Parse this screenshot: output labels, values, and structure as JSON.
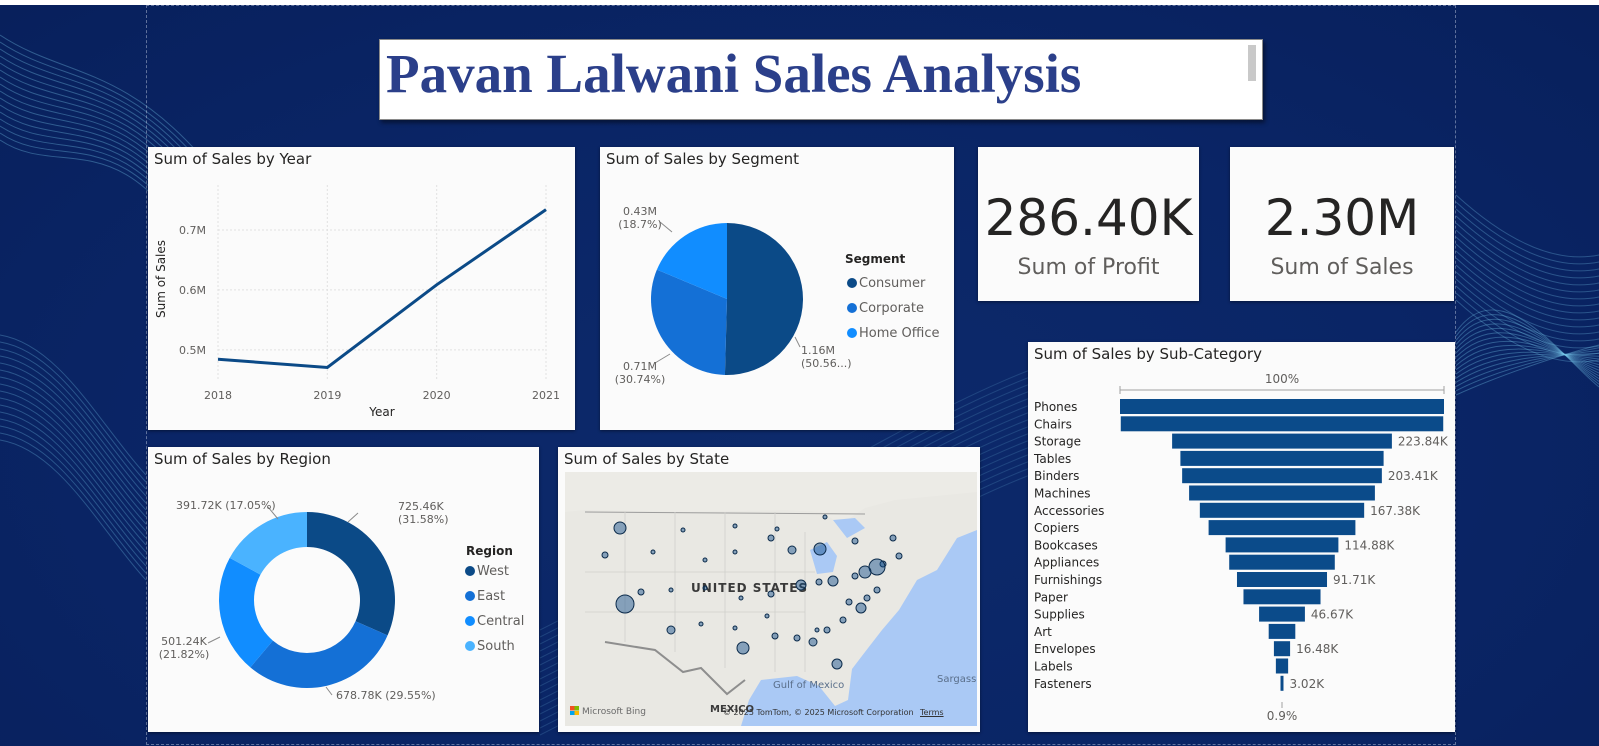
{
  "report": {
    "title": "Pavan Lalwani Sales Analysis"
  },
  "colors": {
    "background": "#0a2566",
    "dark_blue": "#0b4a87",
    "mid_blue": "#1470d6",
    "bright_blue": "#118dff",
    "light_blue": "#4ab3ff",
    "funnel_blue": "#0b4b8a",
    "title_text": "#2b3f8a"
  },
  "kpis": {
    "profit": {
      "value": "286.40K",
      "label": "Sum of Profit"
    },
    "sales": {
      "value": "2.30M",
      "label": "Sum of Sales"
    }
  },
  "map": {
    "title": "Sum of Sales by State",
    "country_label": "UNITED STATES",
    "gulf_label": "Gulf of Mexico",
    "mexico_label": "MEXICO",
    "sargasso_label": "Sargass",
    "bing_label": "Microsoft Bing",
    "credit": "© 2025 TomTom, © 2025 Microsoft Corporation",
    "terms": "Terms"
  },
  "chart_data": [
    {
      "id": "year",
      "type": "line",
      "title": "Sum of Sales by Year",
      "xlabel": "Year",
      "ylabel": "Sum of Sales",
      "x": [
        "2018",
        "2019",
        "2020",
        "2021"
      ],
      "values": [
        484247,
        470533,
        608474,
        733947
      ],
      "yticks": [
        "0.5M",
        "0.6M",
        "0.7M"
      ],
      "ytick_values": [
        500000,
        600000,
        700000
      ],
      "ylim": [
        448000,
        775000
      ],
      "grid": true,
      "color": "#0b4a87"
    },
    {
      "id": "segment",
      "type": "pie",
      "title": "Sum of Sales by Segment",
      "legend_title": "Segment",
      "legend_position": "right",
      "slices": [
        {
          "name": "Consumer",
          "value": 1.16,
          "label": "1.16M",
          "pct_label": "(50.56...)",
          "color": "#0b4a87"
        },
        {
          "name": "Corporate",
          "value": 0.71,
          "label": "0.71M",
          "pct_label": "(30.74%)",
          "color": "#1470d6"
        },
        {
          "name": "Home Office",
          "value": 0.43,
          "label": "0.43M",
          "pct_label": "(18.7%)",
          "color": "#118dff"
        }
      ]
    },
    {
      "id": "region",
      "type": "pie",
      "title": "Sum of Sales by Region",
      "legend_title": "Region",
      "legend_position": "right",
      "donut": true,
      "slices": [
        {
          "name": "West",
          "value": 725.46,
          "label": "725.46K",
          "pct_label": "(31.58%)",
          "color": "#0b4a87"
        },
        {
          "name": "East",
          "value": 678.78,
          "label": "678.78K (29.55%)",
          "pct_label": "",
          "color": "#1470d6"
        },
        {
          "name": "Central",
          "value": 501.24,
          "label": "501.24K",
          "pct_label": "(21.82%)",
          "color": "#118dff"
        },
        {
          "name": "South",
          "value": 391.72,
          "label": "391.72K (17.05%)",
          "pct_label": "",
          "color": "#4ab3ff"
        }
      ]
    },
    {
      "id": "subcategory",
      "type": "bar",
      "subtype": "funnel",
      "title": "Sum of Sales by Sub-Category",
      "top_label": "100%",
      "bottom_label": "0.9%",
      "categories": [
        "Phones",
        "Chairs",
        "Storage",
        "Tables",
        "Binders",
        "Machines",
        "Accessories",
        "Copiers",
        "Bookcases",
        "Appliances",
        "Furnishings",
        "Paper",
        "Supplies",
        "Art",
        "Envelopes",
        "Labels",
        "Fasteners"
      ],
      "values": [
        330007,
        328449,
        223844,
        206966,
        203413,
        189239,
        167380,
        149528,
        114880,
        107532,
        91705,
        78479,
        46674,
        27119,
        16476,
        12486,
        3024
      ],
      "value_labels": [
        "",
        "",
        "223.84K",
        "",
        "203.41K",
        "",
        "167.38K",
        "",
        "114.88K",
        "",
        "91.71K",
        "",
        "46.67K",
        "",
        "16.48K",
        "",
        "3.02K"
      ],
      "color": "#0b4b8a"
    }
  ]
}
